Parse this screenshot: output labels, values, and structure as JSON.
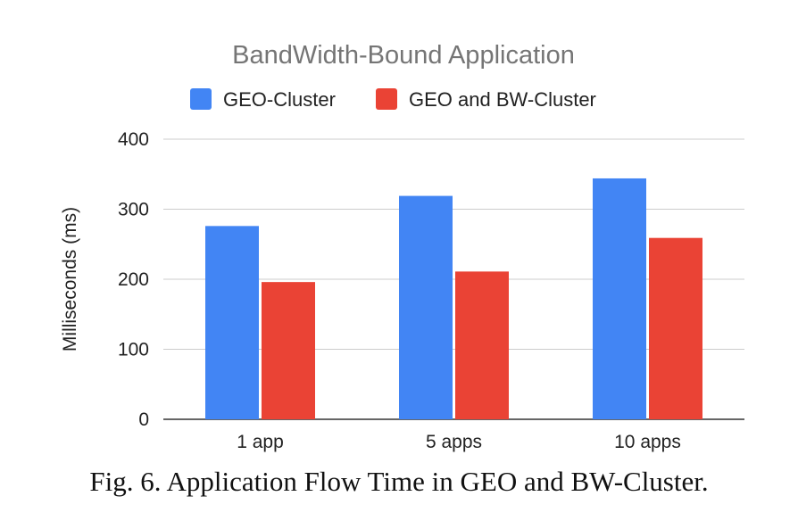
{
  "chart_data": {
    "type": "bar",
    "title": "BandWidth-Bound Application",
    "xlabel": "",
    "ylabel": "Milliseconds (ms)",
    "categories": [
      "1 app",
      "5 apps",
      "10 apps"
    ],
    "series": [
      {
        "name": "GEO-Cluster",
        "values": [
          276,
          319,
          344
        ],
        "color": "#4285f4"
      },
      {
        "name": "GEO and BW-Cluster",
        "values": [
          196,
          211,
          259
        ],
        "color": "#ea4335"
      }
    ],
    "ylim": [
      0,
      400
    ],
    "yticks": [
      0,
      100,
      200,
      300,
      400
    ],
    "grid": true,
    "legend": "top"
  },
  "caption": "Fig. 6.  Application Flow Time in GEO and BW-Cluster."
}
